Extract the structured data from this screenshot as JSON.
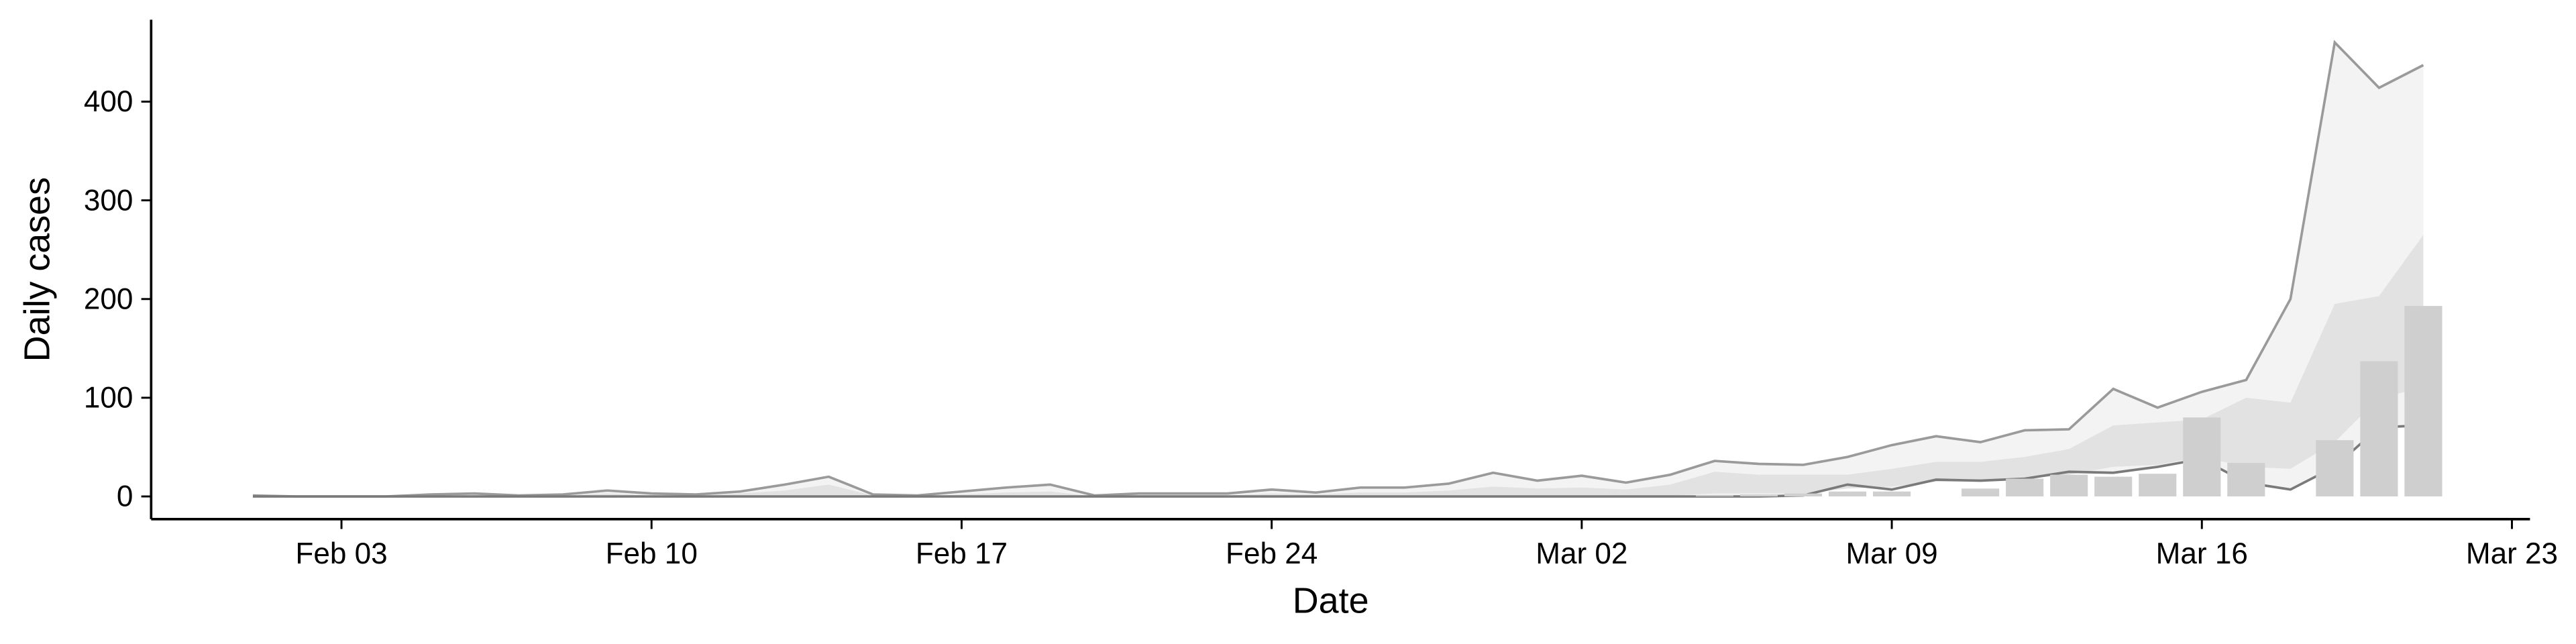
{
  "chart_data": {
    "type": "line",
    "x_label": "Date",
    "y_label": "Daily cases",
    "x": [
      "02-01",
      "02-02",
      "02-03",
      "02-04",
      "02-05",
      "02-06",
      "02-07",
      "02-08",
      "02-09",
      "02-10",
      "02-11",
      "02-12",
      "02-13",
      "02-14",
      "02-15",
      "02-16",
      "02-17",
      "02-18",
      "02-19",
      "02-20",
      "02-21",
      "02-22",
      "02-23",
      "02-24",
      "02-25",
      "02-26",
      "02-27",
      "02-28",
      "02-29",
      "03-01",
      "03-02",
      "03-03",
      "03-04",
      "03-05",
      "03-06",
      "03-07",
      "03-08",
      "03-09",
      "03-10",
      "03-11",
      "03-12",
      "03-13",
      "03-14",
      "03-15",
      "03-16",
      "03-17",
      "03-18",
      "03-19",
      "03-20",
      "03-21"
    ],
    "xlim": [
      "01-30",
      "03-23"
    ],
    "xticks": [
      {
        "value": "02-03",
        "label": "Feb 03"
      },
      {
        "value": "02-10",
        "label": "Feb 10"
      },
      {
        "value": "02-17",
        "label": "Feb 17"
      },
      {
        "value": "02-24",
        "label": "Feb 24"
      },
      {
        "value": "03-02",
        "label": "Mar 02"
      },
      {
        "value": "03-09",
        "label": "Mar 09"
      },
      {
        "value": "03-16",
        "label": "Mar 16"
      },
      {
        "value": "03-23",
        "label": "Mar 23"
      }
    ],
    "ylim": [
      -23,
      483
    ],
    "yticks": [
      0,
      100,
      200,
      300,
      400
    ],
    "grid": false,
    "bands": [
      {
        "color": "#f3f3f3",
        "lower": [
          0,
          0,
          0,
          0,
          0,
          0,
          0,
          0,
          0,
          0,
          0,
          0,
          0,
          0,
          0,
          0,
          0,
          0,
          0,
          0,
          0,
          0,
          0,
          0,
          0,
          0,
          0,
          0,
          0,
          0,
          0,
          0,
          0,
          0,
          0,
          1,
          12,
          7,
          17,
          16,
          18,
          25,
          24,
          30,
          38,
          14,
          7,
          30,
          70,
          72
        ],
        "upper": [
          1,
          0,
          0,
          0,
          2,
          3,
          1,
          2,
          6,
          3,
          2,
          5,
          12,
          20,
          2,
          1,
          5,
          9,
          12,
          1,
          3,
          3,
          3,
          7,
          4,
          9,
          9,
          13,
          24,
          16,
          21,
          14,
          22,
          36,
          33,
          32,
          40,
          52,
          61,
          55,
          67,
          68,
          109,
          90,
          106,
          118,
          200,
          460,
          414,
          437
        ]
      },
      {
        "color": "#e2e2e2",
        "lower": [
          0,
          0,
          0,
          0,
          0,
          0,
          0,
          0,
          0,
          0,
          0,
          0,
          0,
          0,
          0,
          0,
          0,
          0,
          0,
          0,
          0,
          0,
          0,
          0,
          0,
          0,
          0,
          0,
          0,
          0,
          0,
          0,
          1,
          3,
          3,
          3,
          8,
          10,
          15,
          15,
          18,
          22,
          30,
          32,
          40,
          30,
          28,
          55,
          100,
          110
        ],
        "upper": [
          0,
          0,
          0,
          0,
          1,
          1,
          0,
          1,
          3,
          1,
          1,
          3,
          6,
          12,
          1,
          0,
          2,
          4,
          5,
          0,
          1,
          1,
          1,
          3,
          2,
          4,
          4,
          6,
          10,
          8,
          9,
          7,
          12,
          25,
          22,
          22,
          22,
          28,
          35,
          35,
          40,
          48,
          72,
          75,
          78,
          100,
          95,
          195,
          203,
          265
        ]
      }
    ],
    "series": [
      {
        "color": "#9a9a9a",
        "values": [
          1,
          0,
          0,
          0,
          2,
          3,
          1,
          2,
          6,
          3,
          2,
          5,
          12,
          20,
          2,
          1,
          5,
          9,
          12,
          1,
          3,
          3,
          3,
          7,
          4,
          9,
          9,
          13,
          24,
          16,
          21,
          14,
          22,
          36,
          33,
          32,
          40,
          52,
          61,
          55,
          67,
          68,
          109,
          90,
          106,
          118,
          200,
          460,
          414,
          437
        ]
      },
      {
        "color": "#7a7a7a",
        "values": [
          0,
          0,
          0,
          0,
          0,
          0,
          0,
          0,
          0,
          0,
          0,
          0,
          0,
          0,
          0,
          0,
          0,
          0,
          0,
          0,
          0,
          0,
          0,
          0,
          0,
          0,
          0,
          0,
          0,
          0,
          0,
          0,
          0,
          0,
          0,
          1,
          12,
          7,
          17,
          16,
          18,
          25,
          24,
          30,
          38,
          14,
          7,
          30,
          70,
          72
        ]
      }
    ],
    "bars": {
      "color": "#cfcfcf",
      "values": [
        0,
        0,
        0,
        0,
        0,
        0,
        0,
        0,
        0,
        0,
        0,
        0,
        0,
        0,
        0,
        0,
        0,
        0,
        0,
        0,
        0,
        0,
        0,
        0,
        0,
        0,
        0,
        0,
        0,
        0,
        0,
        0,
        0,
        1,
        2,
        3,
        5,
        5,
        0,
        8,
        18,
        22,
        20,
        23,
        80,
        34,
        0,
        57,
        137,
        193
      ]
    }
  }
}
